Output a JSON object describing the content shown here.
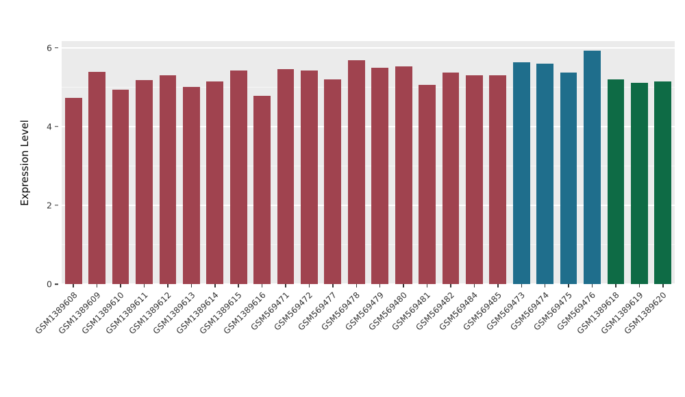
{
  "figure": {
    "ylabel": "Expression Level",
    "background_color": "#FFFFFF",
    "panel_background_color": "#EBEBEB",
    "grid_color": "#FFFFFF",
    "tick_text_color": "#333333"
  },
  "chart_data": {
    "type": "bar",
    "title": "",
    "xlabel": "",
    "ylabel": "Expression Level",
    "ylim": [
      0,
      6.17
    ],
    "yticks": [
      0,
      2,
      4,
      6
    ],
    "yticks_minor": [
      1,
      3,
      5
    ],
    "grid": true,
    "legend": "none",
    "categories": [
      "GSM1389608",
      "GSM1389609",
      "GSM1389610",
      "GSM1389611",
      "GSM1389612",
      "GSM1389613",
      "GSM1389614",
      "GSM1389615",
      "GSM1389616",
      "GSM569471",
      "GSM569472",
      "GSM569477",
      "GSM569478",
      "GSM569479",
      "GSM569480",
      "GSM569481",
      "GSM569482",
      "GSM569484",
      "GSM569485",
      "GSM569473",
      "GSM569474",
      "GSM569475",
      "GSM569476",
      "GSM1389618",
      "GSM1389619",
      "GSM1389620"
    ],
    "values": [
      4.73,
      5.39,
      4.94,
      5.18,
      5.3,
      5.01,
      5.15,
      5.43,
      4.78,
      5.46,
      5.43,
      5.2,
      5.69,
      5.5,
      5.53,
      5.06,
      5.37,
      5.3,
      5.3,
      5.63,
      5.6,
      5.37,
      5.93,
      5.2,
      5.11,
      5.15
    ],
    "group_colors": {
      "group1": "#A0434F",
      "group2": "#1F6E8C",
      "group3": "#0E6B45"
    },
    "bar_colors": [
      "#A0434F",
      "#A0434F",
      "#A0434F",
      "#A0434F",
      "#A0434F",
      "#A0434F",
      "#A0434F",
      "#A0434F",
      "#A0434F",
      "#A0434F",
      "#A0434F",
      "#A0434F",
      "#A0434F",
      "#A0434F",
      "#A0434F",
      "#A0434F",
      "#A0434F",
      "#A0434F",
      "#A0434F",
      "#1F6E8C",
      "#1F6E8C",
      "#1F6E8C",
      "#1F6E8C",
      "#0E6B45",
      "#0E6B45",
      "#0E6B45"
    ]
  }
}
